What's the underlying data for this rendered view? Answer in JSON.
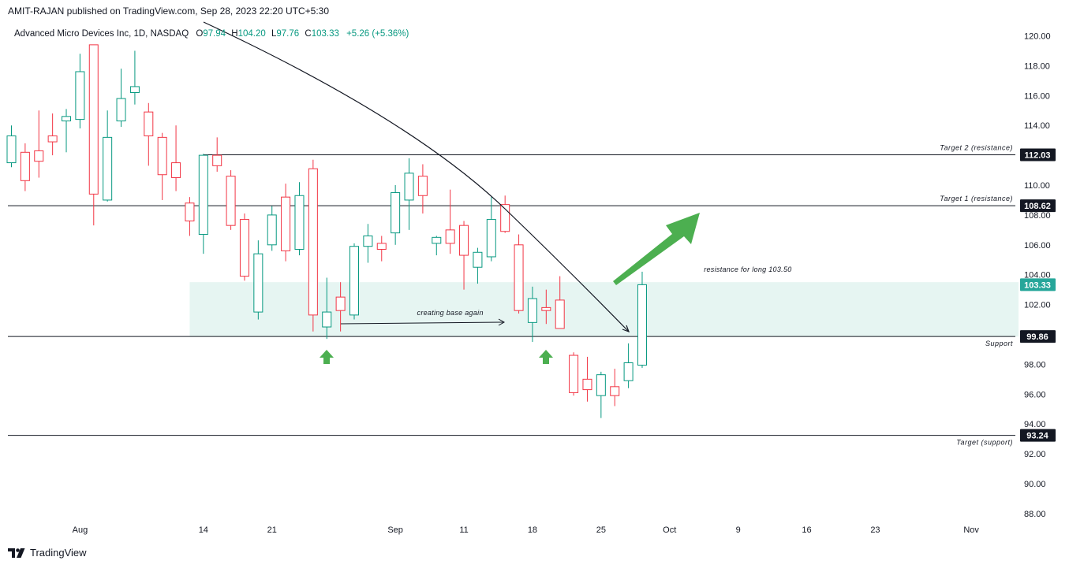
{
  "header": {
    "published": "AMIT-RAJAN published on TradingView.com, Sep 28, 2023 22:20 UTC+5:30"
  },
  "legend": {
    "symbol": "Advanced Micro Devices Inc, 1D, NASDAQ",
    "o_label": "O",
    "o_value": "97.94",
    "h_label": "H",
    "h_value": "104.20",
    "l_label": "L",
    "l_value": "97.76",
    "c_label": "C",
    "c_value": "103.33",
    "change": "+5.26 (+5.36%)"
  },
  "footer": {
    "brand": "TradingView"
  },
  "colors": {
    "up": "#089981",
    "down": "#f23645",
    "zone": "#e6f5f2",
    "arrow": "#4caf50",
    "axis_text": "#131722"
  },
  "chart_data": {
    "type": "candlestick",
    "ylim": [
      86.5,
      121.5
    ],
    "y_ticks": [
      "120.00",
      "118.00",
      "116.00",
      "114.00",
      "112.00",
      "110.00",
      "108.00",
      "106.00",
      "104.00",
      "102.00",
      "100.00",
      "98.00",
      "96.00",
      "94.00",
      "92.00",
      "90.00",
      "88.00"
    ],
    "x_ticks": [
      {
        "label": "Aug",
        "index": 5
      },
      {
        "label": "14",
        "index": 14
      },
      {
        "label": "21",
        "index": 19
      },
      {
        "label": "Sep",
        "index": 28
      },
      {
        "label": "11",
        "index": 33
      },
      {
        "label": "18",
        "index": 38
      },
      {
        "label": "25",
        "index": 43
      },
      {
        "label": "Oct",
        "index": 48
      },
      {
        "label": "9",
        "index": 53
      },
      {
        "label": "16",
        "index": 58
      },
      {
        "label": "23",
        "index": 63
      },
      {
        "label": "Nov",
        "index": 70
      }
    ],
    "candles": [
      {
        "i": 0,
        "o": 111.5,
        "h": 114.0,
        "l": 111.2,
        "c": 113.3
      },
      {
        "i": 1,
        "o": 112.2,
        "h": 112.8,
        "l": 109.6,
        "c": 110.3
      },
      {
        "i": 2,
        "o": 112.3,
        "h": 115.0,
        "l": 110.5,
        "c": 111.6
      },
      {
        "i": 3,
        "o": 113.3,
        "h": 114.8,
        "l": 112.0,
        "c": 112.9
      },
      {
        "i": 4,
        "o": 114.3,
        "h": 115.1,
        "l": 112.2,
        "c": 114.6
      },
      {
        "i": 5,
        "o": 114.4,
        "h": 118.8,
        "l": 113.8,
        "c": 117.6
      },
      {
        "i": 6,
        "o": 119.4,
        "h": 119.4,
        "l": 107.3,
        "c": 109.4
      },
      {
        "i": 7,
        "o": 109.0,
        "h": 115.0,
        "l": 108.9,
        "c": 113.2
      },
      {
        "i": 8,
        "o": 114.3,
        "h": 117.8,
        "l": 113.9,
        "c": 115.8
      },
      {
        "i": 9,
        "o": 116.2,
        "h": 119.0,
        "l": 115.4,
        "c": 116.6
      },
      {
        "i": 10,
        "o": 114.9,
        "h": 115.5,
        "l": 111.3,
        "c": 113.3
      },
      {
        "i": 11,
        "o": 113.2,
        "h": 113.5,
        "l": 109.0,
        "c": 110.7
      },
      {
        "i": 12,
        "o": 111.5,
        "h": 114.0,
        "l": 109.6,
        "c": 110.5
      },
      {
        "i": 13,
        "o": 108.8,
        "h": 109.2,
        "l": 106.6,
        "c": 107.6
      },
      {
        "i": 14,
        "o": 106.7,
        "h": 112.1,
        "l": 105.4,
        "c": 112.0
      },
      {
        "i": 15,
        "o": 112.0,
        "h": 113.2,
        "l": 110.9,
        "c": 111.3
      },
      {
        "i": 16,
        "o": 110.6,
        "h": 111.0,
        "l": 107.0,
        "c": 107.3
      },
      {
        "i": 17,
        "o": 107.7,
        "h": 108.1,
        "l": 103.6,
        "c": 103.9
      },
      {
        "i": 18,
        "o": 101.5,
        "h": 106.3,
        "l": 101.0,
        "c": 105.4
      },
      {
        "i": 19,
        "o": 106.0,
        "h": 108.6,
        "l": 105.6,
        "c": 108.0
      },
      {
        "i": 20,
        "o": 109.2,
        "h": 110.1,
        "l": 104.9,
        "c": 105.6
      },
      {
        "i": 21,
        "o": 105.7,
        "h": 110.2,
        "l": 105.3,
        "c": 109.3
      },
      {
        "i": 22,
        "o": 111.1,
        "h": 111.7,
        "l": 100.2,
        "c": 101.3
      },
      {
        "i": 23,
        "o": 100.5,
        "h": 103.8,
        "l": 99.7,
        "c": 101.5
      },
      {
        "i": 24,
        "o": 102.5,
        "h": 103.5,
        "l": 100.2,
        "c": 101.6
      },
      {
        "i": 25,
        "o": 101.3,
        "h": 106.1,
        "l": 101.0,
        "c": 105.9
      },
      {
        "i": 26,
        "o": 105.9,
        "h": 107.4,
        "l": 104.8,
        "c": 106.6
      },
      {
        "i": 27,
        "o": 106.1,
        "h": 106.6,
        "l": 104.9,
        "c": 105.7
      },
      {
        "i": 28,
        "o": 106.8,
        "h": 110.0,
        "l": 106.0,
        "c": 109.5
      },
      {
        "i": 29,
        "o": 109.0,
        "h": 111.8,
        "l": 107.0,
        "c": 110.8
      },
      {
        "i": 30,
        "o": 110.6,
        "h": 111.4,
        "l": 108.1,
        "c": 109.3
      },
      {
        "i": 31,
        "o": 106.1,
        "h": 106.6,
        "l": 105.3,
        "c": 106.5
      },
      {
        "i": 32,
        "o": 107.0,
        "h": 109.7,
        "l": 105.4,
        "c": 106.1
      },
      {
        "i": 33,
        "o": 107.3,
        "h": 107.6,
        "l": 103.0,
        "c": 105.3
      },
      {
        "i": 34,
        "o": 104.5,
        "h": 105.8,
        "l": 103.4,
        "c": 105.5
      },
      {
        "i": 35,
        "o": 105.2,
        "h": 109.2,
        "l": 104.9,
        "c": 107.7
      },
      {
        "i": 36,
        "o": 108.7,
        "h": 109.3,
        "l": 106.8,
        "c": 106.9
      },
      {
        "i": 37,
        "o": 106.0,
        "h": 106.7,
        "l": 101.4,
        "c": 101.6
      },
      {
        "i": 38,
        "o": 100.8,
        "h": 103.2,
        "l": 99.5,
        "c": 102.4
      },
      {
        "i": 39,
        "o": 101.8,
        "h": 103.0,
        "l": 100.7,
        "c": 101.6
      },
      {
        "i": 40,
        "o": 102.3,
        "h": 103.9,
        "l": 100.4,
        "c": 100.4
      },
      {
        "i": 41,
        "o": 98.6,
        "h": 98.8,
        "l": 95.9,
        "c": 96.1
      },
      {
        "i": 42,
        "o": 97.0,
        "h": 98.5,
        "l": 95.5,
        "c": 96.3
      },
      {
        "i": 43,
        "o": 95.9,
        "h": 97.5,
        "l": 94.4,
        "c": 97.3
      },
      {
        "i": 44,
        "o": 96.5,
        "h": 97.7,
        "l": 95.2,
        "c": 95.9
      },
      {
        "i": 45,
        "o": 96.9,
        "h": 99.4,
        "l": 96.4,
        "c": 98.1
      },
      {
        "i": 46,
        "o": 97.94,
        "h": 104.2,
        "l": 97.76,
        "c": 103.33
      }
    ],
    "levels": [
      {
        "value": 112.03,
        "label": "112.03",
        "note": "Target 2 (resistance)",
        "from": 14
      },
      {
        "value": 108.62,
        "label": "108.62",
        "note": "Target 1 (resistance)",
        "from": 0
      },
      {
        "value": 99.86,
        "label": "99.86",
        "note": "Support",
        "from": 0
      },
      {
        "value": 93.24,
        "label": "93.24",
        "note": "Target (support)",
        "from": 0
      }
    ],
    "current_price": {
      "value": 103.33,
      "label": "103.33"
    },
    "zone": {
      "from_index": 13,
      "to_index": 73,
      "low": 99.86,
      "high": 103.5
    },
    "annotations": [
      {
        "text": "creating base again",
        "x_index": 32,
        "y": 101.3
      },
      {
        "text": "resistance for long 103.50",
        "x_index": 50.5,
        "y": 104.2
      }
    ]
  }
}
